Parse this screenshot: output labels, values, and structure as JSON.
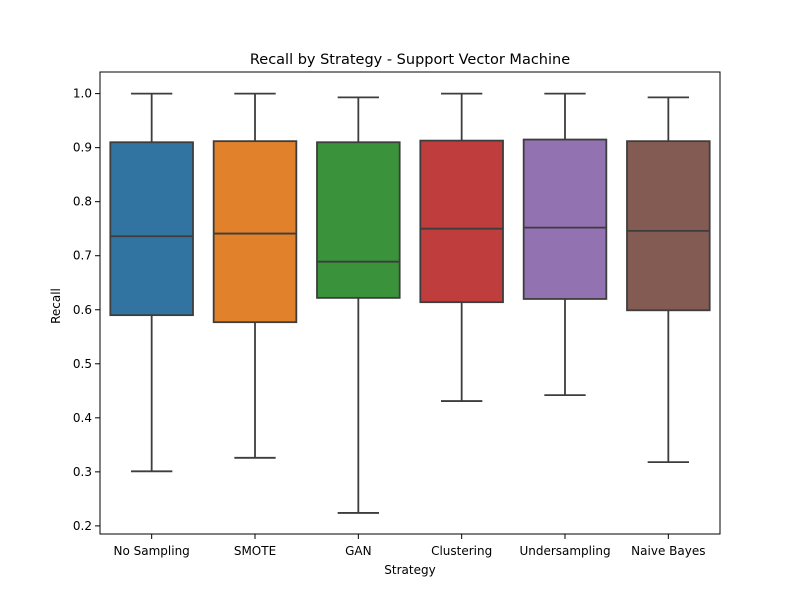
{
  "chart_data": {
    "type": "box",
    "title": "Recall by Strategy - Support Vector Machine",
    "xlabel": "Strategy",
    "ylabel": "Recall",
    "ylim": [
      0.185,
      1.04
    ],
    "yticks": [
      0.2,
      0.3,
      0.4,
      0.5,
      0.6,
      0.7,
      0.8,
      0.9,
      1.0
    ],
    "ytick_labels": [
      "0.2",
      "0.3",
      "0.4",
      "0.5",
      "0.6",
      "0.7",
      "0.8",
      "0.9",
      "1.0"
    ],
    "grid": false,
    "categories": [
      "No Sampling",
      "SMOTE",
      "GAN",
      "Clustering",
      "Undersampling",
      "Naive Bayes"
    ],
    "boxes": [
      {
        "category": "No Sampling",
        "min": 0.301,
        "q1": 0.59,
        "median": 0.736,
        "q3": 0.91,
        "max": 1.0,
        "color": "#3274a1"
      },
      {
        "category": "SMOTE",
        "min": 0.326,
        "q1": 0.577,
        "median": 0.741,
        "q3": 0.912,
        "max": 1.0,
        "color": "#e1812c"
      },
      {
        "category": "GAN",
        "min": 0.224,
        "q1": 0.622,
        "median": 0.689,
        "q3": 0.91,
        "max": 0.993,
        "color": "#3a923a"
      },
      {
        "category": "Clustering",
        "min": 0.431,
        "q1": 0.614,
        "median": 0.75,
        "q3": 0.913,
        "max": 1.0,
        "color": "#c03d3e"
      },
      {
        "category": "Undersampling",
        "min": 0.442,
        "q1": 0.62,
        "median": 0.752,
        "q3": 0.915,
        "max": 1.0,
        "color": "#9372b2"
      },
      {
        "category": "Naive Bayes",
        "min": 0.318,
        "q1": 0.599,
        "median": 0.746,
        "q3": 0.912,
        "max": 0.993,
        "color": "#845b53"
      }
    ],
    "line_color": "#3d3d3d"
  }
}
